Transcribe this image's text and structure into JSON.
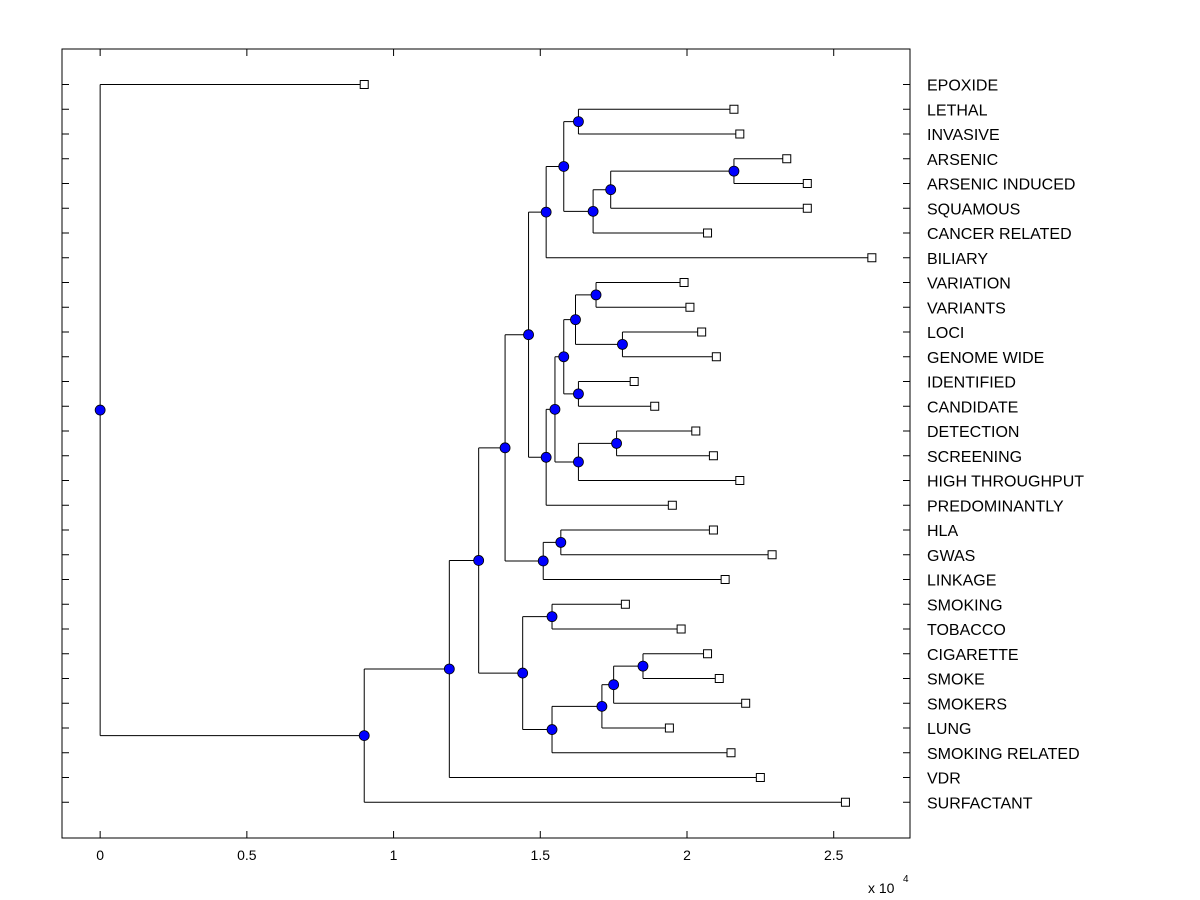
{
  "chart_data": {
    "type": "dendrogram",
    "orientation": "horizontal",
    "xlabel": "",
    "ylabel": "",
    "title": "",
    "x_scale_label": "x 10",
    "x_scale_exponent": "4",
    "xlim": [
      -0.13,
      2.76
    ],
    "x_ticks": [
      0,
      0.5,
      1,
      1.5,
      2,
      2.5
    ],
    "x_tick_labels": [
      "0",
      "0.5",
      "1",
      "1.5",
      "2",
      "2.5"
    ],
    "colors": {
      "node_fill": "#0000ff",
      "line": "#000000",
      "leaf_marker": "#ffffff"
    },
    "leaves": [
      {
        "label": "EPOXIDE",
        "x": 0.9
      },
      {
        "label": "LETHAL",
        "x": 2.16
      },
      {
        "label": "INVASIVE",
        "x": 2.18
      },
      {
        "label": "ARSENIC",
        "x": 2.34
      },
      {
        "label": "ARSENIC INDUCED",
        "x": 2.41
      },
      {
        "label": "SQUAMOUS",
        "x": 2.41
      },
      {
        "label": "CANCER RELATED",
        "x": 2.07
      },
      {
        "label": "BILIARY",
        "x": 2.63
      },
      {
        "label": "VARIATION",
        "x": 1.99
      },
      {
        "label": "VARIANTS",
        "x": 2.01
      },
      {
        "label": "LOCI",
        "x": 2.05
      },
      {
        "label": "GENOME WIDE",
        "x": 2.1
      },
      {
        "label": "IDENTIFIED",
        "x": 1.82
      },
      {
        "label": "CANDIDATE",
        "x": 1.89
      },
      {
        "label": "DETECTION",
        "x": 2.03
      },
      {
        "label": "SCREENING",
        "x": 2.09
      },
      {
        "label": "HIGH THROUGHPUT",
        "x": 2.18
      },
      {
        "label": "PREDOMINANTLY",
        "x": 1.95
      },
      {
        "label": "HLA",
        "x": 2.09
      },
      {
        "label": "GWAS",
        "x": 2.29
      },
      {
        "label": "LINKAGE",
        "x": 2.13
      },
      {
        "label": "SMOKING",
        "x": 1.79
      },
      {
        "label": "TOBACCO",
        "x": 1.98
      },
      {
        "label": "CIGARETTE",
        "x": 2.07
      },
      {
        "label": "SMOKE",
        "x": 2.11
      },
      {
        "label": "SMOKERS",
        "x": 2.2
      },
      {
        "label": "LUNG",
        "x": 1.94
      },
      {
        "label": "SMOKING RELATED",
        "x": 2.15
      },
      {
        "label": "VDR",
        "x": 2.25
      },
      {
        "label": "SURFACTANT",
        "x": 2.54
      }
    ],
    "nodes": [
      {
        "id": "a",
        "x": 1.63,
        "children": [
          1,
          2
        ]
      },
      {
        "id": "b",
        "x": 2.16,
        "children": [
          3,
          4
        ]
      },
      {
        "id": "c",
        "x": 1.74,
        "children": [
          "b",
          5
        ]
      },
      {
        "id": "d",
        "x": 1.68,
        "children": [
          "c",
          6
        ]
      },
      {
        "id": "e",
        "x": 1.58,
        "children": [
          "a",
          "d"
        ]
      },
      {
        "id": "f",
        "x": 1.52,
        "children": [
          "e",
          7
        ]
      },
      {
        "id": "g",
        "x": 1.69,
        "children": [
          8,
          9
        ]
      },
      {
        "id": "h",
        "x": 1.78,
        "children": [
          10,
          11
        ]
      },
      {
        "id": "i",
        "x": 1.62,
        "children": [
          "g",
          "h"
        ]
      },
      {
        "id": "j",
        "x": 1.63,
        "children": [
          12,
          13
        ]
      },
      {
        "id": "k",
        "x": 1.58,
        "children": [
          "i",
          "j"
        ]
      },
      {
        "id": "l",
        "x": 1.76,
        "children": [
          14,
          15
        ]
      },
      {
        "id": "m",
        "x": 1.63,
        "children": [
          "l",
          16
        ]
      },
      {
        "id": "n",
        "x": 1.55,
        "children": [
          "k",
          "m"
        ]
      },
      {
        "id": "o",
        "x": 1.52,
        "children": [
          "n",
          17
        ]
      },
      {
        "id": "p",
        "x": 1.46,
        "children": [
          "f",
          "o"
        ]
      },
      {
        "id": "q",
        "x": 1.57,
        "children": [
          18,
          19
        ]
      },
      {
        "id": "r",
        "x": 1.51,
        "children": [
          "q",
          20
        ]
      },
      {
        "id": "s",
        "x": 1.38,
        "children": [
          "p",
          "r"
        ]
      },
      {
        "id": "t",
        "x": 1.54,
        "children": [
          21,
          22
        ]
      },
      {
        "id": "u",
        "x": 1.85,
        "children": [
          23,
          24
        ]
      },
      {
        "id": "v",
        "x": 1.75,
        "children": [
          "u",
          25
        ]
      },
      {
        "id": "w",
        "x": 1.71,
        "children": [
          "v",
          26
        ]
      },
      {
        "id": "x",
        "x": 1.54,
        "children": [
          "w",
          27
        ]
      },
      {
        "id": "y",
        "x": 1.44,
        "children": [
          "t",
          "x"
        ]
      },
      {
        "id": "z",
        "x": 1.29,
        "children": [
          "s",
          "y"
        ]
      },
      {
        "id": "aa",
        "x": 1.19,
        "children": [
          "z",
          28
        ]
      },
      {
        "id": "ab",
        "x": 0.9,
        "children": [
          "aa",
          29
        ]
      },
      {
        "id": "root",
        "x": 0.0,
        "children": [
          0,
          "ab"
        ]
      }
    ]
  }
}
